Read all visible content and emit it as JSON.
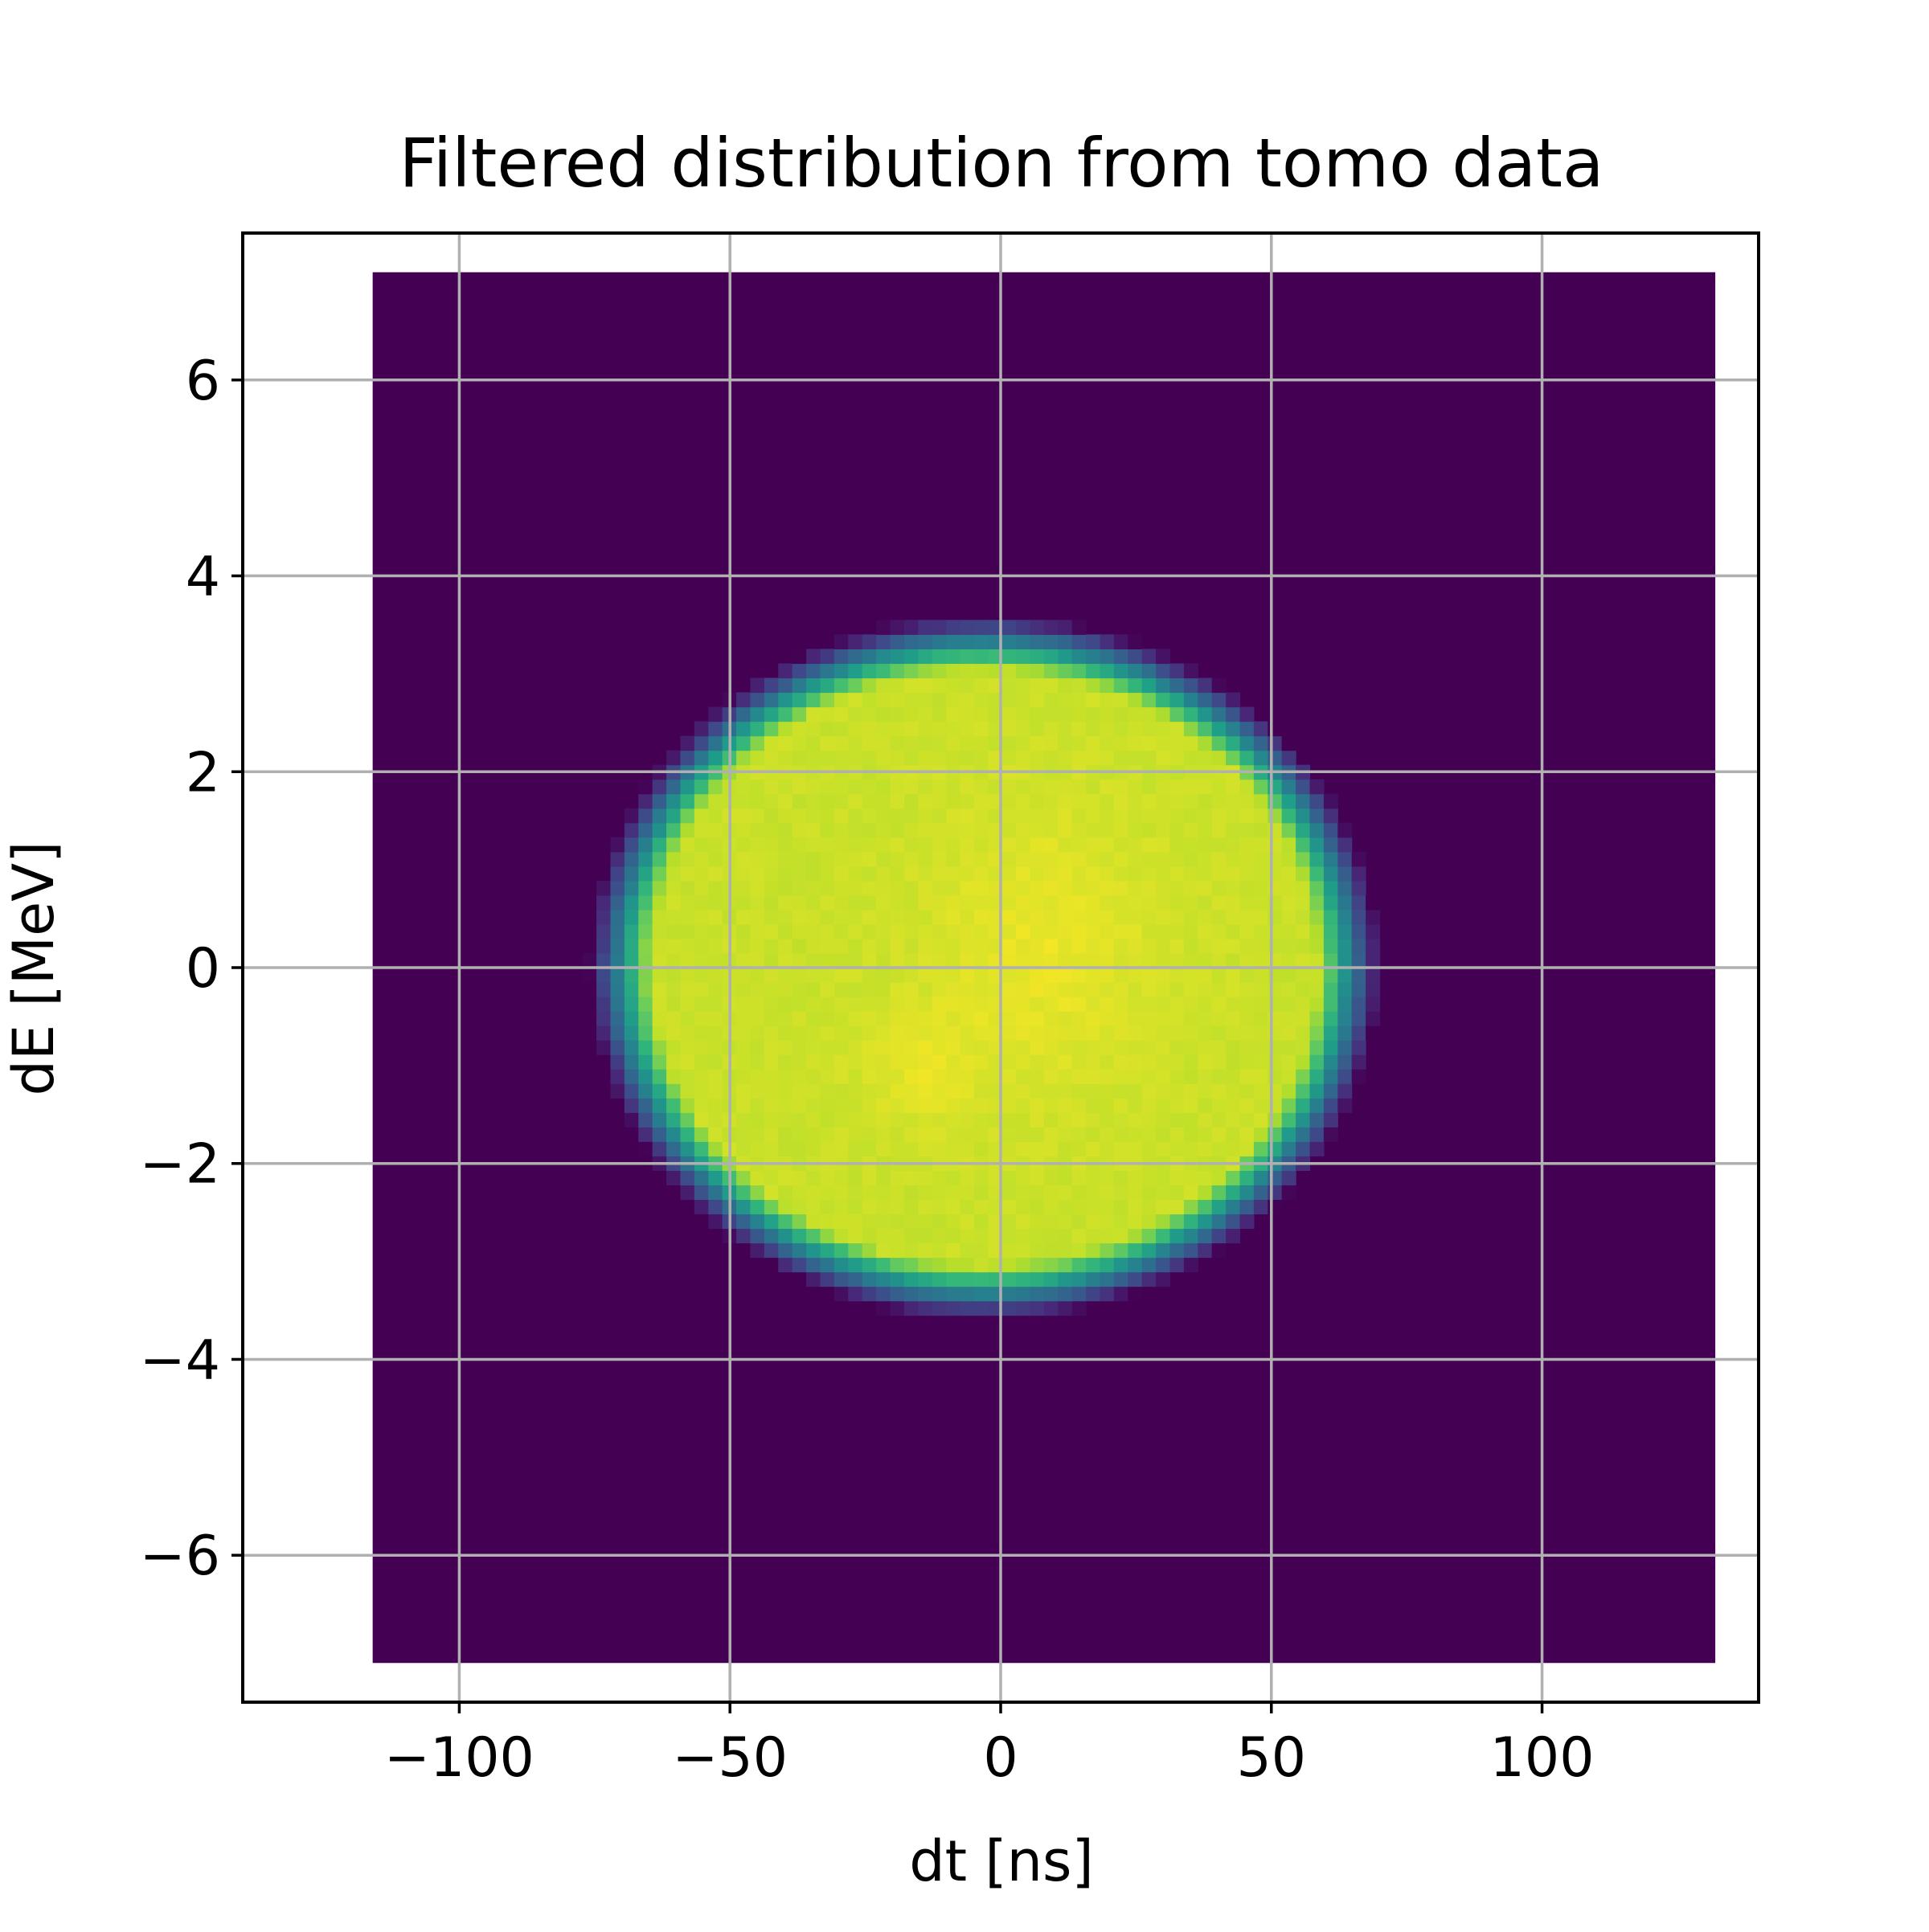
{
  "chart_data": {
    "type": "heatmap",
    "title": "Filtered distribution from tomo data",
    "xlabel": "dt [ns]",
    "ylabel": "dE [MeV]",
    "xlim": [
      -140,
      140
    ],
    "ylim": [
      -7.5,
      7.5
    ],
    "x_ticks": [
      -100,
      -50,
      0,
      50,
      100
    ],
    "x_tick_labels": [
      "−100",
      "−50",
      "0",
      "50",
      "100"
    ],
    "y_ticks": [
      6,
      4,
      2,
      0,
      -2,
      -4,
      -6
    ],
    "y_tick_labels": [
      "6",
      "4",
      "2",
      "0",
      "−2",
      "−4",
      "−6"
    ],
    "grid": true,
    "colormap": "viridis",
    "extent": {
      "x": [
        -116,
        132
      ],
      "y": [
        -7.1,
        7.1
      ]
    },
    "background_value": 0,
    "distribution": {
      "shape": "uniform disk (filtered)",
      "center": {
        "dt": -3,
        "dE": 0
      },
      "radius": {
        "dt": 73,
        "dE": 3.6
      },
      "peak_value": 1.0,
      "plateau_value": 0.92
    },
    "bins": {
      "dt": 96,
      "dE": 96
    }
  },
  "colors": {
    "background": "#440154",
    "grid": "#b0b0b0",
    "axes": "#000000"
  }
}
